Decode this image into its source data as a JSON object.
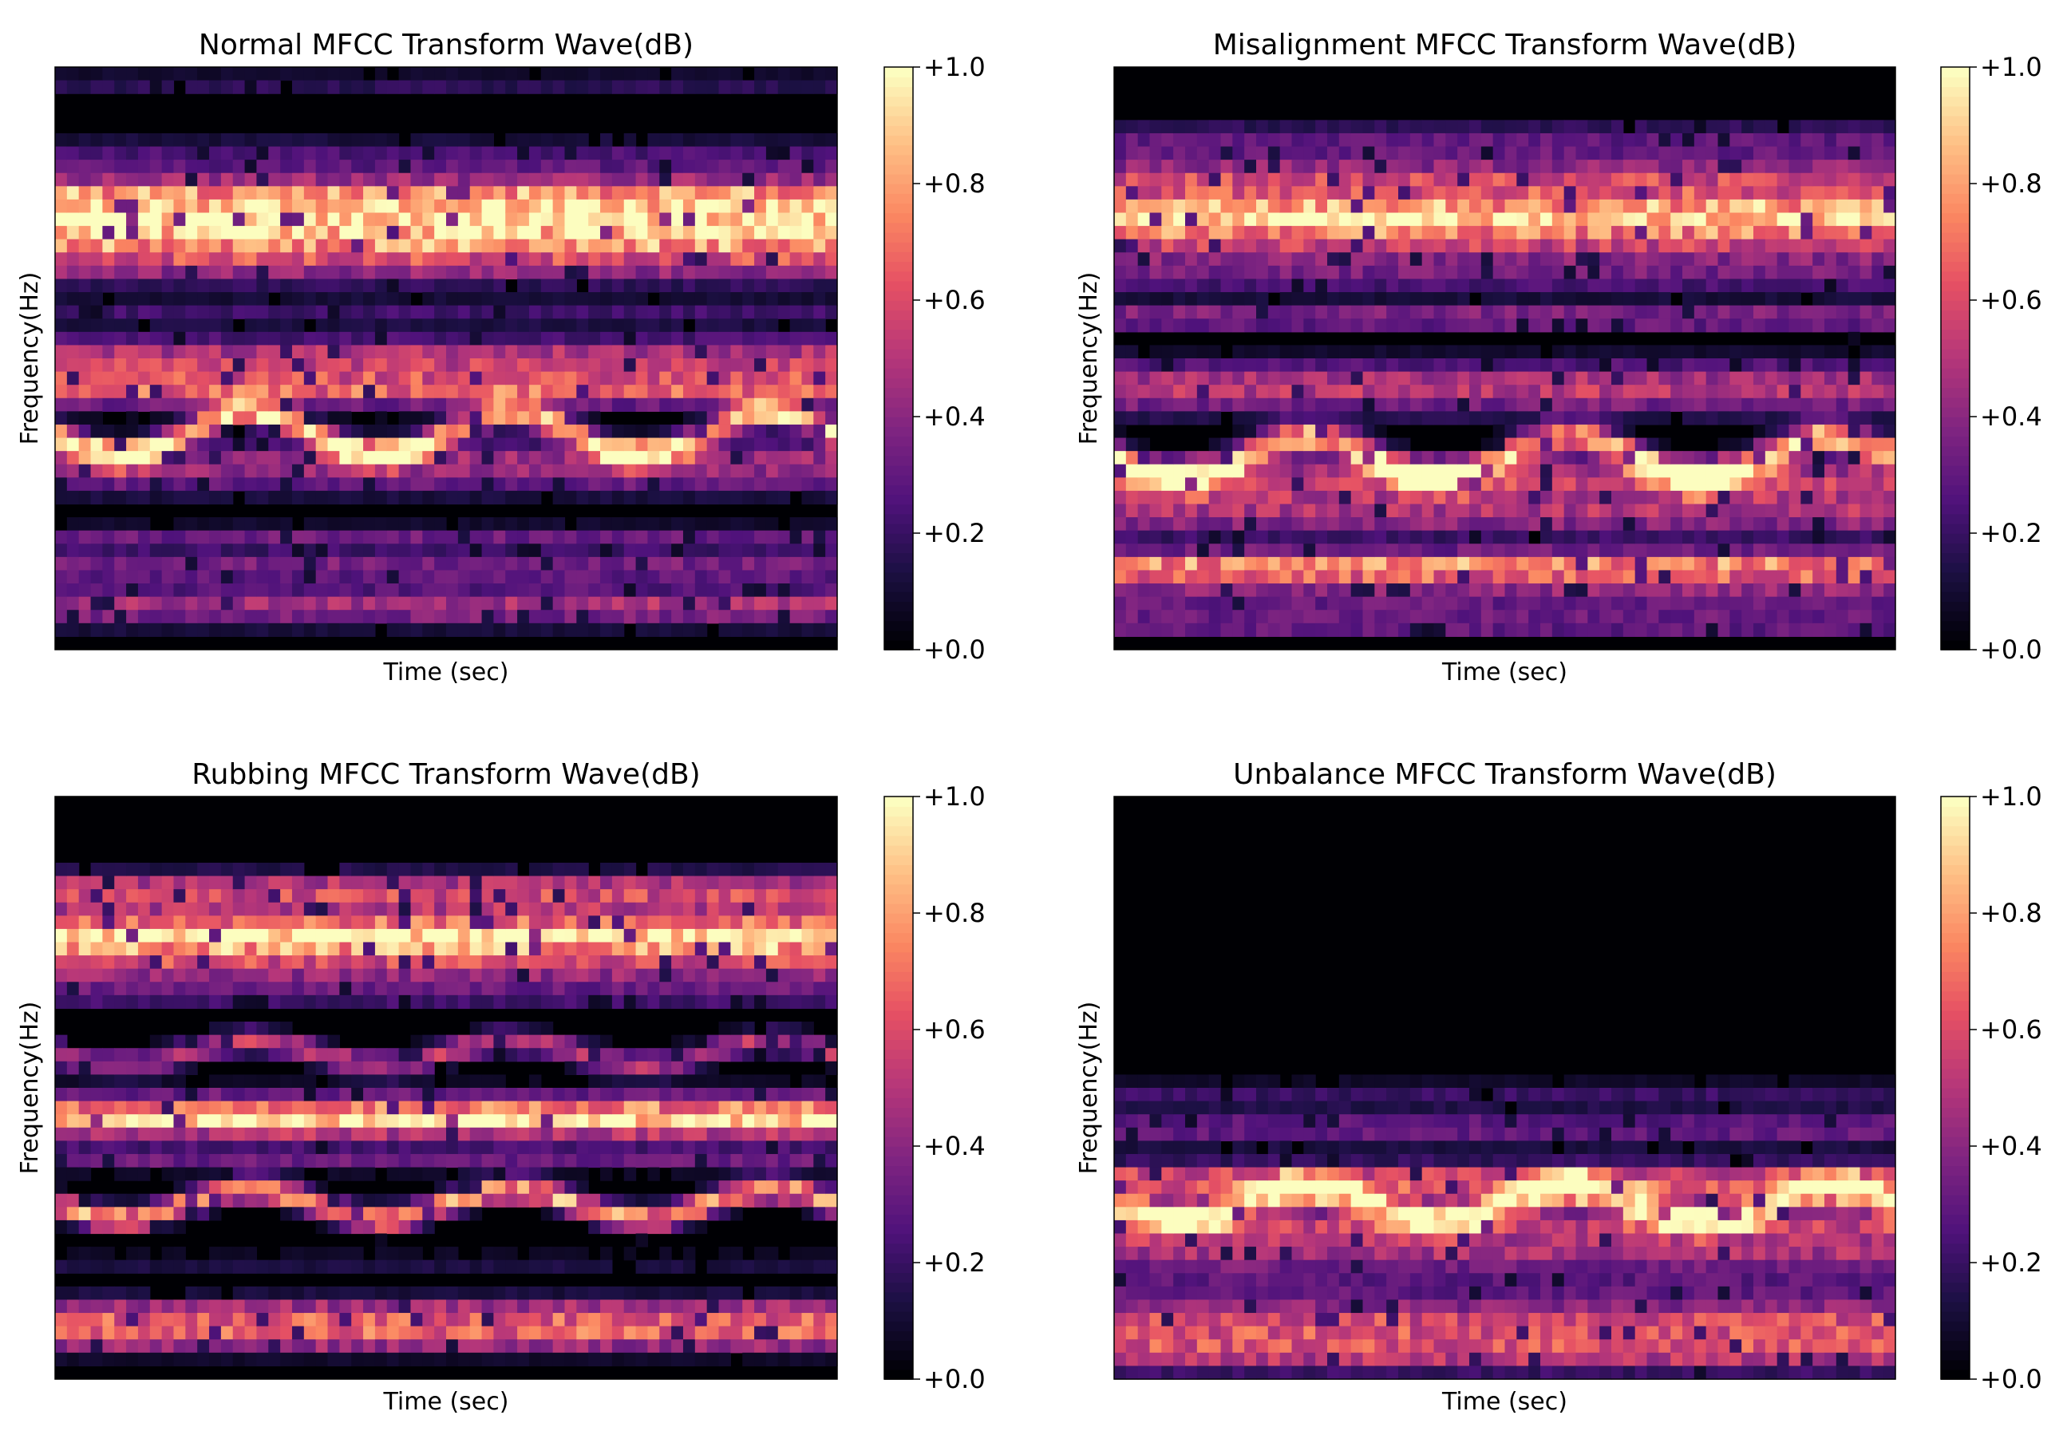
{
  "chart_data": [
    {
      "type": "heatmap",
      "title": "Normal MFCC Transform Wave(dB)",
      "xlabel": "Time (sec)",
      "ylabel": "Frequency(Hz)",
      "colorbar": {
        "range": [
          0.0,
          1.0
        ],
        "ticks": [
          "+0.0",
          "+0.2",
          "+0.4",
          "+0.6",
          "+0.8",
          "+1.0"
        ],
        "colormap": "magma"
      },
      "bands": [
        {
          "y": 0.03,
          "h": 0.02,
          "a": 0.18
        },
        {
          "y": 0.16,
          "h": 0.04,
          "a": 0.28
        },
        {
          "y": 0.22,
          "h": 0.03,
          "a": 0.7
        },
        {
          "y": 0.265,
          "h": 0.035,
          "a": 0.9
        },
        {
          "y": 0.31,
          "h": 0.03,
          "a": 0.6
        },
        {
          "y": 0.35,
          "h": 0.03,
          "a": 0.35
        },
        {
          "y": 0.42,
          "h": 0.02,
          "a": 0.22
        },
        {
          "y": 0.5,
          "h": 0.04,
          "a": 0.55
        },
        {
          "y": 0.555,
          "h": 0.03,
          "a": 0.65
        },
        {
          "y": 0.63,
          "h": 0.02,
          "a": 0.9,
          "wave": 0.035
        },
        {
          "y": 0.67,
          "h": 0.03,
          "a": 0.4
        },
        {
          "y": 0.71,
          "h": 0.03,
          "a": 0.3
        },
        {
          "y": 0.81,
          "h": 0.02,
          "a": 0.35
        },
        {
          "y": 0.86,
          "h": 0.02,
          "a": 0.4
        },
        {
          "y": 0.925,
          "h": 0.035,
          "a": 0.5
        }
      ]
    },
    {
      "type": "heatmap",
      "title": "Misalignment MFCC Transform Wave(dB)",
      "xlabel": "Time (sec)",
      "ylabel": "Frequency(Hz)",
      "colorbar": {
        "range": [
          0.0,
          1.0
        ],
        "ticks": [
          "+0.0",
          "+0.2",
          "+0.4",
          "+0.6",
          "+0.8",
          "+1.0"
        ],
        "colormap": "magma"
      },
      "bands": [
        {
          "y": 0.13,
          "h": 0.04,
          "a": 0.3
        },
        {
          "y": 0.2,
          "h": 0.04,
          "a": 0.6
        },
        {
          "y": 0.255,
          "h": 0.03,
          "a": 0.8
        },
        {
          "y": 0.3,
          "h": 0.04,
          "a": 0.55
        },
        {
          "y": 0.36,
          "h": 0.03,
          "a": 0.3
        },
        {
          "y": 0.43,
          "h": 0.02,
          "a": 0.45
        },
        {
          "y": 0.55,
          "h": 0.05,
          "a": 0.55
        },
        {
          "y": 0.67,
          "h": 0.025,
          "a": 0.9,
          "wave": 0.035
        },
        {
          "y": 0.71,
          "h": 0.04,
          "a": 0.55
        },
        {
          "y": 0.77,
          "h": 0.04,
          "a": 0.45
        },
        {
          "y": 0.86,
          "h": 0.03,
          "a": 0.85
        },
        {
          "y": 0.91,
          "h": 0.02,
          "a": 0.35
        },
        {
          "y": 0.955,
          "h": 0.02,
          "a": 0.4
        }
      ]
    },
    {
      "type": "heatmap",
      "title": "Rubbing MFCC Transform Wave(dB)",
      "xlabel": "Time (sec)",
      "ylabel": "Frequency(Hz)",
      "colorbar": {
        "range": [
          0.0,
          1.0
        ],
        "ticks": [
          "+0.0",
          "+0.2",
          "+0.4",
          "+0.6",
          "+0.8",
          "+1.0"
        ],
        "colormap": "magma"
      },
      "bands": [
        {
          "y": 0.16,
          "h": 0.03,
          "a": 0.6
        },
        {
          "y": 0.21,
          "h": 0.03,
          "a": 0.45
        },
        {
          "y": 0.245,
          "h": 0.025,
          "a": 0.9
        },
        {
          "y": 0.29,
          "h": 0.03,
          "a": 0.55
        },
        {
          "y": 0.34,
          "h": 0.02,
          "a": 0.3
        },
        {
          "y": 0.44,
          "h": 0.02,
          "a": 0.55,
          "wave": 0.02
        },
        {
          "y": 0.53,
          "h": 0.03,
          "a": 0.45
        },
        {
          "y": 0.56,
          "h": 0.025,
          "a": 0.85
        },
        {
          "y": 0.62,
          "h": 0.02,
          "a": 0.35
        },
        {
          "y": 0.7,
          "h": 0.02,
          "a": 0.85,
          "wave": 0.025
        },
        {
          "y": 0.8,
          "h": 0.015,
          "a": 0.15
        },
        {
          "y": 0.89,
          "h": 0.03,
          "a": 0.6
        },
        {
          "y": 0.93,
          "h": 0.025,
          "a": 0.55
        }
      ]
    },
    {
      "type": "heatmap",
      "title": "Unbalance MFCC Transform Wave(dB)",
      "xlabel": "Time (sec)",
      "ylabel": "Frequency(Hz)",
      "colorbar": {
        "range": [
          0.0,
          1.0
        ],
        "ticks": [
          "+0.0",
          "+0.2",
          "+0.4",
          "+0.6",
          "+0.8",
          "+1.0"
        ],
        "colormap": "magma"
      },
      "bands": [
        {
          "y": 0.51,
          "h": 0.02,
          "a": 0.2
        },
        {
          "y": 0.57,
          "h": 0.03,
          "a": 0.35
        },
        {
          "y": 0.66,
          "h": 0.03,
          "a": 0.7
        },
        {
          "y": 0.7,
          "h": 0.025,
          "a": 0.9,
          "wave": 0.025
        },
        {
          "y": 0.74,
          "h": 0.03,
          "a": 0.55
        },
        {
          "y": 0.79,
          "h": 0.03,
          "a": 0.45
        },
        {
          "y": 0.84,
          "h": 0.02,
          "a": 0.25
        },
        {
          "y": 0.9,
          "h": 0.04,
          "a": 0.6
        },
        {
          "y": 0.955,
          "h": 0.035,
          "a": 0.55
        }
      ]
    }
  ]
}
